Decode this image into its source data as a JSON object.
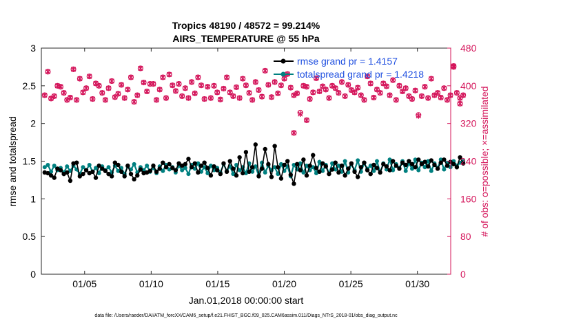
{
  "chart_data": {
    "type": "line",
    "title": "Tropics 48190 / 48572 = 99.214%",
    "subtitle": "AIRS_TEMPERATURE @ 55 hPa",
    "ylabel_left": "rmse and totalspread",
    "ylabel_right": "# of obs: o=possible; ×=assimilated",
    "xlabel": "Jan.01,2018 00:00:00 start",
    "footnote": "data file: /Users/raeder/DAI/ATM_forcXX/CAM6_setup/f.e21.FHIST_BGC.f09_025.CAM6assim.011/Diags_NTrS_2018-01/obs_diag_output.nc",
    "ylim_left": [
      0,
      3
    ],
    "ylim_right": [
      0,
      480
    ],
    "xlim_days": [
      0.75,
      31.5
    ],
    "x_tick_days": [
      4,
      9,
      14,
      19,
      24,
      29
    ],
    "x_tick_labels": [
      "01/05",
      "01/10",
      "01/15",
      "01/20",
      "01/25",
      "01/30"
    ],
    "y_left_ticks": [
      "0",
      "0.5",
      "1",
      "1.5",
      "2",
      "2.5",
      "3"
    ],
    "y_left_tick_values": [
      0,
      0.5,
      1,
      1.5,
      2,
      2.5,
      3
    ],
    "y_right_ticks": [
      "0",
      "80",
      "160",
      "240",
      "320",
      "400",
      "480"
    ],
    "y_right_tick_values": [
      0,
      80,
      160,
      240,
      320,
      400,
      480
    ],
    "rmse_base": [
      1.35,
      1.34,
      1.31,
      1.28,
      1.4,
      1.38,
      1.33,
      1.35,
      1.24,
      1.47,
      1.42,
      1.3,
      1.33,
      1.38,
      1.34,
      1.36,
      1.28,
      1.44,
      1.4,
      1.37,
      1.33,
      1.3,
      1.37,
      1.45,
      1.36,
      1.3,
      1.44,
      1.33,
      1.26,
      1.31,
      1.39,
      1.34,
      1.35,
      1.37,
      1.44,
      1.36,
      1.4,
      1.48,
      1.42,
      1.46,
      1.41,
      1.38,
      1.47,
      1.44,
      1.46,
      1.53,
      1.42,
      1.47,
      1.35,
      1.44,
      1.48,
      1.41,
      1.31,
      1.43,
      1.38,
      1.33,
      1.47,
      1.36,
      1.5,
      1.4,
      1.31,
      1.55,
      1.34,
      1.6,
      1.36,
      1.42,
      1.56,
      1.3,
      1.4,
      1.66,
      1.46,
      1.29,
      1.5,
      1.42,
      1.27,
      1.45,
      1.5,
      1.32,
      1.18,
      1.46,
      1.38,
      1.52,
      1.31,
      1.44,
      1.54,
      1.41,
      1.36,
      1.47,
      1.43,
      1.33,
      1.39,
      1.48,
      1.35,
      1.44,
      1.31,
      1.4,
      1.47,
      1.36,
      1.29,
      1.42,
      1.48,
      1.38,
      1.33,
      1.45,
      1.41,
      1.35,
      1.46,
      1.43,
      1.38,
      1.5,
      1.44,
      1.4,
      1.48,
      1.45,
      1.5,
      1.46,
      1.42,
      1.52,
      1.46,
      1.49,
      1.43,
      1.51,
      1.45,
      1.4,
      1.48,
      1.52,
      1.44,
      1.49,
      1.46,
      1.42,
      1.55,
      1.47
    ],
    "rmse_spikes": [
      [
        66,
        1.72
      ],
      [
        72,
        1.7
      ],
      [
        78,
        1.2
      ],
      [
        63,
        1.62
      ],
      [
        84,
        1.58
      ],
      [
        10,
        1.48
      ],
      [
        22,
        1.48
      ]
    ],
    "spread_base": [
      1.42,
      1.45,
      1.36,
      1.44,
      1.38,
      1.41,
      1.35,
      1.43,
      1.37,
      1.44,
      1.39,
      1.33,
      1.42,
      1.38,
      1.45,
      1.36,
      1.41,
      1.34,
      1.43,
      1.38,
      1.42,
      1.35,
      1.44,
      1.37,
      1.41,
      1.33,
      1.43,
      1.39,
      1.46,
      1.35,
      1.42,
      1.38,
      1.44,
      1.36,
      1.41,
      1.34,
      1.43,
      1.37,
      1.45,
      1.39,
      1.42,
      1.35,
      1.44,
      1.38,
      1.41,
      1.33,
      1.45,
      1.4,
      1.47,
      1.36,
      1.42,
      1.34,
      1.44,
      1.38,
      1.41,
      1.35,
      1.46,
      1.37,
      1.43,
      1.33,
      1.45,
      1.38,
      1.42,
      1.34,
      1.47,
      1.36,
      1.43,
      1.31,
      1.48,
      1.35,
      1.44,
      1.38,
      1.42,
      1.33,
      1.46,
      1.37,
      1.43,
      1.3,
      1.45,
      1.39,
      1.47,
      1.35,
      1.44,
      1.38,
      1.42,
      1.34,
      1.49,
      1.37,
      1.45,
      1.33,
      1.47,
      1.39,
      1.44,
      1.36,
      1.5,
      1.35,
      1.46,
      1.38,
      1.51,
      1.36,
      1.47,
      1.4,
      1.44,
      1.37,
      1.5,
      1.35,
      1.47,
      1.39,
      1.52,
      1.38,
      1.46,
      1.41,
      1.5,
      1.37,
      1.47,
      1.4,
      1.52,
      1.38,
      1.48,
      1.42,
      1.5,
      1.37,
      1.47,
      1.41,
      1.52,
      1.39,
      1.48,
      1.42,
      1.5,
      1.44,
      1.48,
      1.5
    ],
    "obs_possible": [
      380,
      430,
      373,
      378,
      400,
      398,
      385,
      370,
      375,
      435,
      370,
      415,
      386,
      395,
      420,
      372,
      405,
      400,
      385,
      370,
      395,
      410,
      376,
      383,
      402,
      374,
      392,
      418,
      366,
      380,
      437,
      407,
      388,
      404,
      404,
      370,
      392,
      418,
      374,
      424,
      401,
      389,
      404,
      378,
      395,
      374,
      408,
      384,
      418,
      401,
      372,
      398,
      374,
      400,
      386,
      371,
      394,
      418,
      386,
      378,
      397,
      374,
      415,
      401,
      385,
      370,
      408,
      391,
      377,
      432,
      402,
      376,
      408,
      384,
      401,
      415,
      425,
      396,
      380,
      384,
      343,
      400,
      398,
      372,
      386,
      416,
      388,
      399,
      392,
      374,
      400,
      395,
      385,
      408,
      378,
      402,
      391,
      386,
      396,
      380,
      370,
      420,
      405,
      375,
      392,
      385,
      405,
      399,
      380,
      412,
      370,
      400,
      388,
      395,
      378,
      372,
      390,
      338,
      378,
      398,
      374,
      415,
      380,
      385,
      375,
      395,
      370,
      380,
      440,
      385,
      362,
      380
    ],
    "obs_assimilated": [
      380,
      430,
      373,
      378,
      400,
      398,
      385,
      370,
      375,
      435,
      370,
      415,
      386,
      395,
      420,
      372,
      405,
      400,
      385,
      370,
      395,
      410,
      376,
      383,
      402,
      374,
      392,
      418,
      366,
      380,
      437,
      407,
      388,
      404,
      404,
      370,
      392,
      418,
      374,
      424,
      401,
      389,
      404,
      378,
      395,
      374,
      408,
      384,
      418,
      401,
      372,
      398,
      374,
      400,
      386,
      371,
      394,
      418,
      386,
      378,
      397,
      374,
      415,
      401,
      385,
      370,
      408,
      391,
      377,
      432,
      402,
      376,
      408,
      384,
      401,
      415,
      425,
      396,
      380,
      384,
      340,
      400,
      398,
      372,
      386,
      416,
      388,
      399,
      392,
      374,
      400,
      395,
      385,
      408,
      378,
      402,
      391,
      386,
      396,
      380,
      370,
      420,
      405,
      375,
      392,
      385,
      405,
      399,
      380,
      412,
      370,
      400,
      388,
      395,
      378,
      372,
      390,
      336,
      378,
      398,
      374,
      415,
      380,
      385,
      375,
      395,
      370,
      380,
      440,
      385,
      362,
      380
    ],
    "obs_extra": [
      [
        82,
        327
      ],
      [
        78,
        300
      ],
      [
        128,
        442
      ],
      [
        130,
        374
      ]
    ],
    "series": [
      {
        "name": "rmse grand pr = 1.4157",
        "color": "#000000",
        "marker": "circle"
      },
      {
        "name": "totalspread grand pr = 1.4218",
        "color": "#008080",
        "marker": "circle"
      },
      {
        "name": "obs possible",
        "color": "#d4145a",
        "marker": "circle-open"
      },
      {
        "name": "obs assimilated",
        "color": "#d4145a",
        "marker": "x"
      }
    ],
    "legend_position": "top-right",
    "colors": {
      "left_axis": "#000000",
      "right_axis": "#d4145a",
      "legend_text": "#1f4fe0"
    }
  }
}
